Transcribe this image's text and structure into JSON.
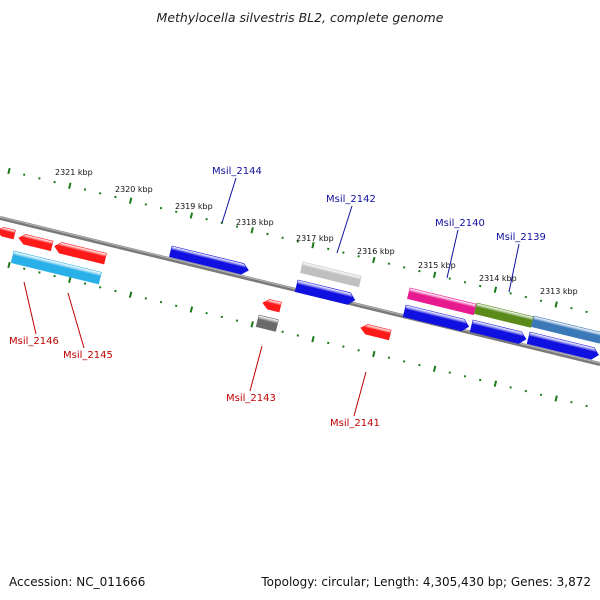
{
  "title": "Methylocella silvestris BL2, complete genome",
  "footer": {
    "accession": "Accession: NC_011666",
    "summary": "Topology: circular; Length: 4,305,430 bp; Genes: 3,872"
  },
  "colors": {
    "backbone": "#7a7a7a",
    "tick": "#1a7a1a",
    "forward_label": "#1010a0",
    "reverse_label": "#c00000"
  },
  "scale": {
    "unit": "kbp",
    "labels": [
      "2321 kbp",
      "2320 kbp",
      "2319 kbp",
      "2318 kbp",
      "2317 kbp",
      "2316 kbp",
      "2315 kbp",
      "2314 kbp",
      "2313 kbp"
    ]
  },
  "genes": [
    {
      "name": "Msil_2146",
      "strand": "reverse",
      "color": "#ff1a1a"
    },
    {
      "name": "Msil_2145",
      "strand": "reverse",
      "color": "#ff1a1a"
    },
    {
      "name": "Msil_2144",
      "strand": "forward",
      "color": "#1010e0"
    },
    {
      "name": "Msil_2143",
      "strand": "reverse",
      "color": "#ff1a1a"
    },
    {
      "name": "Msil_2142",
      "strand": "forward",
      "color": "#1010e0"
    },
    {
      "name": "Msil_2141",
      "strand": "reverse",
      "color": "#ff1a1a"
    },
    {
      "name": "Msil_2140",
      "strand": "forward",
      "color": "#1010e0"
    },
    {
      "name": "Msil_2139",
      "strand": "forward",
      "color": "#1010e0"
    }
  ],
  "features": [
    {
      "kind": "misc_feature",
      "color": "#2ab0e8"
    },
    {
      "kind": "misc_feature",
      "color": "#c0c0c0"
    },
    {
      "kind": "misc_feature",
      "color": "#6a6a6a"
    },
    {
      "kind": "misc_feature",
      "color": "#e81a90"
    },
    {
      "kind": "misc_feature",
      "color": "#5a8a1a"
    },
    {
      "kind": "misc_feature",
      "color": "#3a78b8"
    }
  ]
}
